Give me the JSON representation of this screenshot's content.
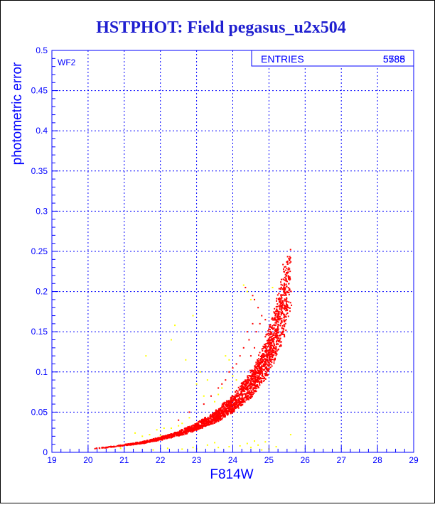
{
  "colors": {
    "axis": "#0000ff",
    "title": "#1f1fd0",
    "main_points": "#ff0000",
    "outlier_points": "#ffff00",
    "background": "#ffffff"
  },
  "chart_data": {
    "type": "scatter",
    "title": "HSTPHOT: Field pegasus_u2x504",
    "xlabel": "F814W",
    "ylabel": "photometric error",
    "xlim": [
      19,
      29
    ],
    "ylim": [
      0,
      0.5
    ],
    "grid": true,
    "x_ticks": [
      "19",
      "20",
      "21",
      "22",
      "23",
      "24",
      "25",
      "26",
      "27",
      "28",
      "29"
    ],
    "y_ticks": [
      "0",
      "0.05",
      "0.1",
      "0.15",
      "0.2",
      "0.25",
      "0.3",
      "0.35",
      "0.4",
      "0.45",
      "0.5"
    ],
    "panel_label": "WF2",
    "stats_box": {
      "label": "ENTRIES",
      "values": [
        "5585",
        "5788"
      ],
      "position": "top-right"
    },
    "series": [
      {
        "color": "#ff0000",
        "kind": "main locus",
        "trend": [
          [
            20.0,
            0.004
          ],
          [
            20.5,
            0.006
          ],
          [
            21.0,
            0.009
          ],
          [
            21.5,
            0.012
          ],
          [
            22.0,
            0.017
          ],
          [
            22.5,
            0.023
          ],
          [
            23.0,
            0.032
          ],
          [
            23.5,
            0.043
          ],
          [
            24.0,
            0.06
          ],
          [
            24.5,
            0.084
          ],
          [
            24.8,
            0.105
          ],
          [
            25.0,
            0.125
          ],
          [
            25.2,
            0.15
          ],
          [
            25.4,
            0.185
          ],
          [
            25.55,
            0.215
          ]
        ],
        "points": [
          [
            24.35,
            0.205
          ],
          [
            24.55,
            0.195
          ],
          [
            24.6,
            0.19
          ],
          [
            24.7,
            0.18
          ],
          [
            24.8,
            0.17
          ],
          [
            24.9,
            0.165
          ],
          [
            24.4,
            0.15
          ],
          [
            24.55,
            0.16
          ],
          [
            24.2,
            0.12
          ],
          [
            24.3,
            0.13
          ],
          [
            23.9,
            0.1
          ],
          [
            24.0,
            0.105
          ],
          [
            23.8,
            0.09
          ],
          [
            24.1,
            0.11
          ],
          [
            23.6,
            0.08
          ],
          [
            23.4,
            0.07
          ],
          [
            23.7,
            0.085
          ],
          [
            22.5,
            0.04
          ],
          [
            22.8,
            0.05
          ],
          [
            23.2,
            0.06
          ],
          [
            24.45,
            0.14
          ],
          [
            24.65,
            0.15
          ],
          [
            24.75,
            0.16
          ],
          [
            24.5,
            0.12
          ],
          [
            24.6,
            0.13
          ]
        ]
      },
      {
        "color": "#ffff00",
        "kind": "outliers",
        "points": [
          [
            22.4,
            0.158
          ],
          [
            22.9,
            0.17
          ],
          [
            22.3,
            0.14
          ],
          [
            21.6,
            0.12
          ],
          [
            22.7,
            0.115
          ],
          [
            23.1,
            0.1
          ],
          [
            23.3,
            0.09
          ],
          [
            23.0,
            0.085
          ],
          [
            23.9,
            0.115
          ],
          [
            23.8,
            0.12
          ],
          [
            24.4,
            0.2
          ],
          [
            24.5,
            0.19
          ],
          [
            25.1,
            0.205
          ],
          [
            24.3,
            0.208
          ],
          [
            23.5,
            0.063
          ],
          [
            23.6,
            0.072
          ],
          [
            22.6,
            0.036
          ],
          [
            22.8,
            0.043
          ],
          [
            22.1,
            0.03
          ],
          [
            21.9,
            0.028
          ],
          [
            22.3,
            0.03
          ],
          [
            21.7,
            0.022
          ],
          [
            21.5,
            0.02
          ],
          [
            21.3,
            0.024
          ],
          [
            22.0,
            0.021
          ],
          [
            22.5,
            0.033
          ],
          [
            23.2,
            0.07
          ],
          [
            23.7,
            0.08
          ],
          [
            24.0,
            0.095
          ],
          [
            24.1,
            0.09
          ],
          [
            22.9,
            0.006
          ],
          [
            23.3,
            0.009
          ],
          [
            23.5,
            0.012
          ],
          [
            23.9,
            0.007
          ],
          [
            24.2,
            0.008
          ],
          [
            24.5,
            0.006
          ],
          [
            24.7,
            0.009
          ],
          [
            24.9,
            0.013
          ],
          [
            25.2,
            0.007
          ],
          [
            25.6,
            0.022
          ],
          [
            22.2,
            0.005
          ],
          [
            22.6,
            0.004
          ],
          [
            21.8,
            0.003
          ],
          [
            24.8,
            0.003
          ],
          [
            24.4,
            0.011
          ],
          [
            24.6,
            0.014
          ],
          [
            25.0,
            0.004
          ],
          [
            23.0,
            0.004
          ],
          [
            23.6,
            0.006
          ],
          [
            20.9,
            0.005
          ]
        ]
      }
    ]
  }
}
